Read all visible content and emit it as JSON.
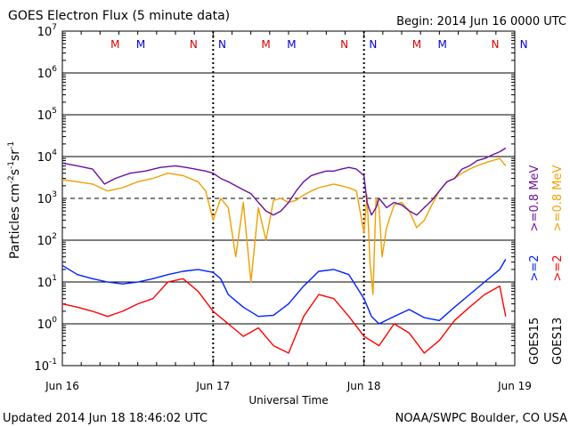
{
  "chart_data": {
    "type": "line",
    "title": "GOES Electron Flux (5 minute data)",
    "begin_label": "Begin: 2014 Jun 16 0000 UTC",
    "xlabel": "Universal Time",
    "ylabel_main": "Particles cm",
    "ylabel_sup1": "-2",
    "ylabel_mid1": "s",
    "ylabel_sup2": "-1",
    "ylabel_mid2": "sr",
    "ylabel_sup3": "-1",
    "x_ticks": [
      "Jun 16",
      "Jun 17",
      "Jun 18",
      "Jun 19"
    ],
    "y_ticks": [
      {
        "base": "10",
        "exp": "7"
      },
      {
        "base": "10",
        "exp": "6"
      },
      {
        "base": "10",
        "exp": "5"
      },
      {
        "base": "10",
        "exp": "4"
      },
      {
        "base": "10",
        "exp": "3"
      },
      {
        "base": "10",
        "exp": "2"
      },
      {
        "base": "10",
        "exp": "1"
      },
      {
        "base": "10",
        "exp": "0"
      },
      {
        "base": "10",
        "exp": "-1"
      }
    ],
    "ylim_log10": [
      -1,
      7
    ],
    "xlim_days": [
      0,
      3
    ],
    "threshold_log10": 3,
    "mn_markers": [
      {
        "label": "M",
        "day": 0.35,
        "color": "#e00000"
      },
      {
        "label": "M",
        "day": 0.52,
        "color": "#0000e0"
      },
      {
        "label": "N",
        "day": 0.87,
        "color": "#e00000"
      },
      {
        "label": "N",
        "day": 1.06,
        "color": "#0000e0"
      },
      {
        "label": "M",
        "day": 1.35,
        "color": "#e00000"
      },
      {
        "label": "M",
        "day": 1.52,
        "color": "#0000e0"
      },
      {
        "label": "N",
        "day": 1.87,
        "color": "#e00000"
      },
      {
        "label": "N",
        "day": 2.06,
        "color": "#0000e0"
      },
      {
        "label": "M",
        "day": 2.35,
        "color": "#e00000"
      },
      {
        "label": "M",
        "day": 2.52,
        "color": "#0000e0"
      },
      {
        "label": "N",
        "day": 2.87,
        "color": "#e00000"
      },
      {
        "label": "N",
        "day": 3.06,
        "color": "#0000e0"
      }
    ],
    "series": [
      {
        "name": "GOES15 >=0.8 MeV",
        "color": "#6a0fa0",
        "x": [
          0.0,
          0.1,
          0.2,
          0.28,
          0.35,
          0.45,
          0.55,
          0.65,
          0.75,
          0.82,
          0.88,
          0.95,
          1.0,
          1.05,
          1.1,
          1.15,
          1.2,
          1.25,
          1.3,
          1.35,
          1.4,
          1.45,
          1.5,
          1.55,
          1.6,
          1.65,
          1.7,
          1.75,
          1.8,
          1.85,
          1.9,
          1.95,
          2.0,
          2.02,
          2.05,
          2.08,
          2.1,
          2.15,
          2.2,
          2.25,
          2.3,
          2.35,
          2.4,
          2.45,
          2.5,
          2.55,
          2.6,
          2.65,
          2.7,
          2.75,
          2.8,
          2.85,
          2.9,
          2.94
        ],
        "y": [
          7000,
          6000,
          5000,
          2200,
          3000,
          4000,
          4500,
          5500,
          6000,
          5500,
          5000,
          4500,
          4000,
          3000,
          2500,
          2000,
          1600,
          1300,
          800,
          500,
          400,
          500,
          800,
          1500,
          2500,
          3500,
          4000,
          4500,
          4500,
          5000,
          5500,
          5000,
          3500,
          800,
          400,
          600,
          1000,
          600,
          800,
          700,
          500,
          400,
          600,
          900,
          1500,
          2500,
          3000,
          5000,
          6000,
          8000,
          9000,
          11000,
          13000,
          16000
        ]
      },
      {
        "name": "GOES13 >=0.8 MeV",
        "color": "#f0a000",
        "x": [
          0.0,
          0.1,
          0.2,
          0.3,
          0.4,
          0.5,
          0.6,
          0.7,
          0.8,
          0.9,
          0.95,
          1.0,
          1.05,
          1.1,
          1.15,
          1.2,
          1.25,
          1.3,
          1.35,
          1.4,
          1.45,
          1.5,
          1.55,
          1.6,
          1.65,
          1.7,
          1.75,
          1.8,
          1.85,
          1.9,
          1.95,
          2.0,
          2.02,
          2.04,
          2.06,
          2.08,
          2.1,
          2.12,
          2.15,
          2.2,
          2.25,
          2.3,
          2.35,
          2.4,
          2.45,
          2.5,
          2.55,
          2.6,
          2.65,
          2.7,
          2.75,
          2.8,
          2.85,
          2.9,
          2.94
        ],
        "y": [
          2800,
          2500,
          2200,
          1500,
          1800,
          2500,
          3000,
          4000,
          3500,
          2500,
          1500,
          300,
          1000,
          600,
          40,
          800,
          10,
          600,
          100,
          900,
          1000,
          800,
          900,
          1200,
          1500,
          1800,
          2000,
          2200,
          2000,
          1800,
          1500,
          150,
          1200,
          30,
          5,
          1000,
          600,
          40,
          200,
          700,
          800,
          500,
          200,
          300,
          700,
          1500,
          2500,
          3000,
          4000,
          5000,
          6000,
          7000,
          8000,
          9000,
          6000
        ]
      },
      {
        "name": "GOES15 >=2 MeV",
        "color": "#0020ff",
        "x": [
          0.0,
          0.1,
          0.2,
          0.3,
          0.4,
          0.5,
          0.6,
          0.7,
          0.8,
          0.9,
          1.0,
          1.05,
          1.1,
          1.2,
          1.3,
          1.4,
          1.5,
          1.6,
          1.7,
          1.8,
          1.9,
          2.0,
          2.05,
          2.1,
          2.2,
          2.3,
          2.4,
          2.5,
          2.6,
          2.7,
          2.8,
          2.9,
          2.94
        ],
        "y": [
          25,
          15,
          12,
          10,
          9,
          10,
          12,
          15,
          18,
          20,
          17,
          12,
          5,
          2.5,
          1.5,
          1.6,
          3,
          8,
          18,
          20,
          15,
          4,
          1.5,
          1.0,
          1.5,
          2.2,
          1.4,
          1.2,
          2.5,
          5,
          10,
          20,
          35
        ]
      },
      {
        "name": "GOES13 >=2 MeV",
        "color": "#ff0000",
        "x": [
          0.0,
          0.1,
          0.2,
          0.3,
          0.4,
          0.5,
          0.6,
          0.7,
          0.8,
          0.9,
          1.0,
          1.1,
          1.2,
          1.3,
          1.4,
          1.5,
          1.6,
          1.7,
          1.8,
          1.9,
          2.0,
          2.1,
          2.2,
          2.3,
          2.4,
          2.5,
          2.6,
          2.7,
          2.8,
          2.9,
          2.94
        ],
        "y": [
          3,
          2.5,
          2,
          1.5,
          2,
          3,
          4,
          10,
          12,
          6,
          2,
          1.0,
          0.5,
          0.8,
          0.3,
          0.2,
          1.5,
          5,
          4,
          1.5,
          0.5,
          0.3,
          1.0,
          0.6,
          0.2,
          0.4,
          1.2,
          2.5,
          5,
          8,
          1.5
        ]
      }
    ],
    "right_labels": [
      {
        "text": "GOES15",
        "color": "#000000"
      },
      {
        "text": ">=2",
        "color": "#0020ff"
      },
      {
        "text": ">=0.8 MeV",
        "color": "#6a0fa0"
      },
      {
        "text": "GOES13",
        "color": "#000000"
      },
      {
        "text": ">=2",
        "color": "#ff0000"
      },
      {
        "text": ">=0.8 MeV",
        "color": "#f0a000"
      }
    ]
  },
  "footer": {
    "updated": "Updated 2014 Jun 18 18:46:02 UTC",
    "source": "NOAA/SWPC Boulder, CO USA"
  }
}
